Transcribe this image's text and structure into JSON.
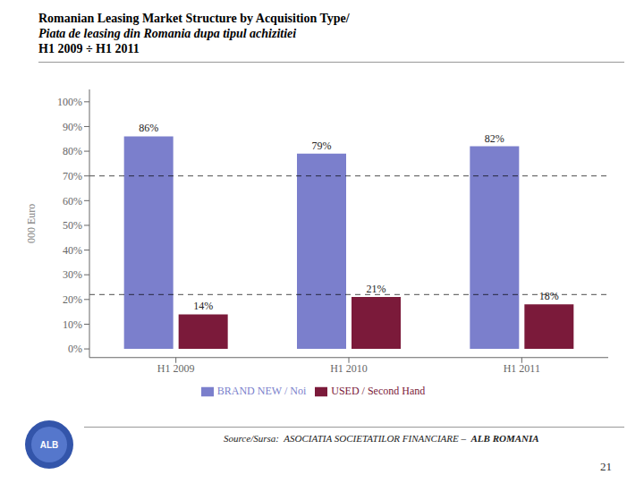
{
  "chart_data": {
    "type": "bar",
    "title": [
      "Romanian Leasing Market Structure by Acquisition Type/",
      "Piata de leasing din Romania dupa tipul achizitiei",
      "H1 2009 ÷  H1 2011"
    ],
    "categories": [
      "H1 2009",
      "H1 2010",
      "H1 2011"
    ],
    "series": [
      {
        "name": "BRAND NEW / Noi",
        "color": "#7B7FCC",
        "values": [
          86,
          79,
          82
        ],
        "value_labels": [
          "86%",
          "79%",
          "82%"
        ]
      },
      {
        "name": "USED / Second Hand",
        "color": "#7B1A3A",
        "values": [
          14,
          21,
          18
        ],
        "value_labels": [
          "14%",
          "21%",
          "18%"
        ]
      }
    ],
    "ylabel": "000 Euro",
    "ylim": [
      -3.5,
      105
    ],
    "yticks": [
      {
        "value": 0,
        "label": "0%"
      },
      {
        "value": 10,
        "label": "10%"
      },
      {
        "value": 20,
        "label": "20%"
      },
      {
        "value": 30,
        "label": "30%"
      },
      {
        "value": 40,
        "label": "40%"
      },
      {
        "value": 50,
        "label": "50%"
      },
      {
        "value": 60,
        "label": "60%"
      },
      {
        "value": 70,
        "label": "70%"
      },
      {
        "value": 80,
        "label": "80%"
      },
      {
        "value": 90,
        "label": "90%"
      },
      {
        "value": 100,
        "label": "100%"
      }
    ],
    "reference_lines": [
      70,
      22
    ],
    "grid": false,
    "legend": "bottom",
    "data_labels": true,
    "annotations": [
      "Source/Sursa:  ASOCIATIA SOCIETATILOR FINANCIARE –  ",
      "ALB ROMANIA",
      "21",
      "ALB"
    ]
  }
}
